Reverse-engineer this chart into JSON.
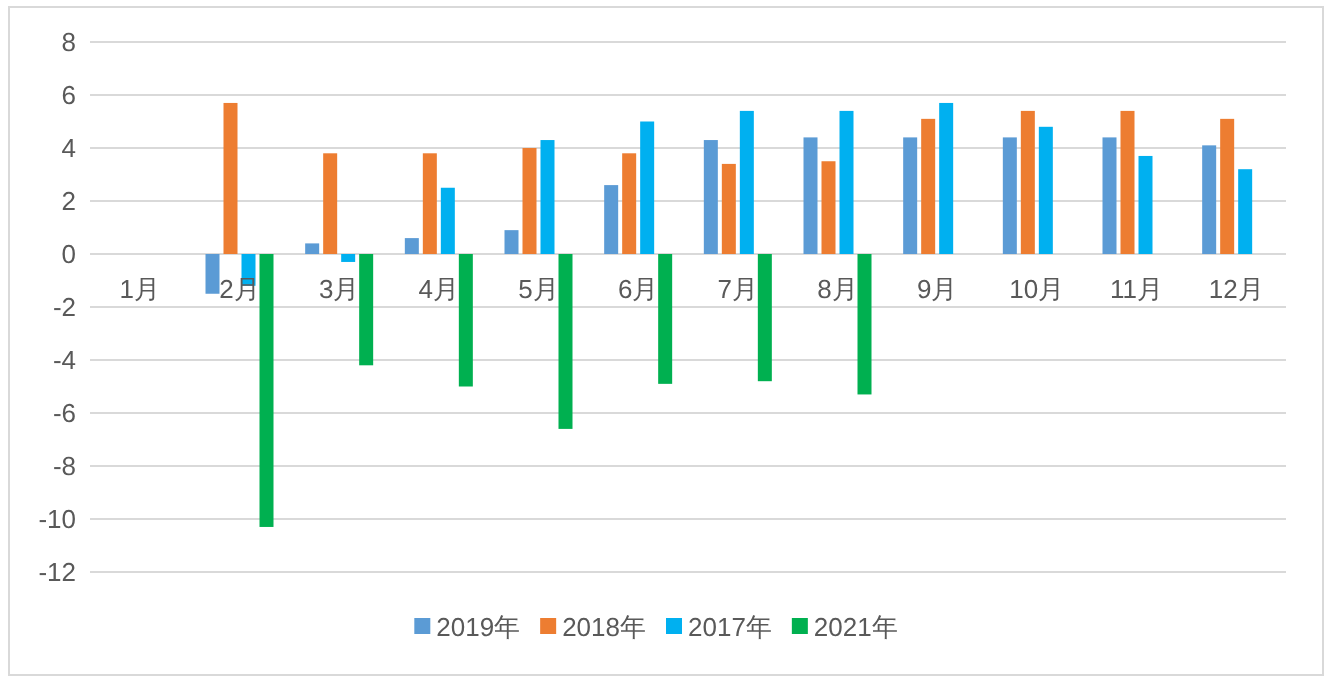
{
  "chart_data": {
    "type": "bar",
    "categories": [
      "1月",
      "2月",
      "3月",
      "4月",
      "5月",
      "6月",
      "7月",
      "8月",
      "9月",
      "10月",
      "11月",
      "12月"
    ],
    "series": [
      {
        "name": "2019年",
        "color": "#5b9bd5",
        "values": [
          null,
          -1.5,
          0.4,
          0.6,
          0.9,
          2.6,
          4.3,
          4.4,
          4.4,
          4.4,
          4.4,
          4.1
        ]
      },
      {
        "name": "2018年",
        "color": "#ed7d31",
        "values": [
          null,
          5.7,
          3.8,
          3.8,
          4.0,
          3.8,
          3.4,
          3.5,
          5.1,
          5.4,
          5.4,
          5.1
        ]
      },
      {
        "name": "2017年",
        "color": "#00b0f0",
        "values": [
          null,
          -1.2,
          -0.3,
          2.5,
          4.3,
          5.0,
          5.4,
          5.4,
          5.7,
          4.8,
          3.7,
          3.2
        ]
      },
      {
        "name": "2021年",
        "color": "#00b050",
        "values": [
          null,
          -10.3,
          -4.2,
          -5.0,
          -6.6,
          -4.9,
          -4.8,
          -5.3,
          null,
          null,
          null,
          null
        ]
      }
    ],
    "ylim": [
      -12,
      8
    ],
    "yticks": [
      -12,
      -10,
      -8,
      -6,
      -4,
      -2,
      0,
      2,
      4,
      6,
      8
    ],
    "grid": "y",
    "legend": "bottom"
  }
}
